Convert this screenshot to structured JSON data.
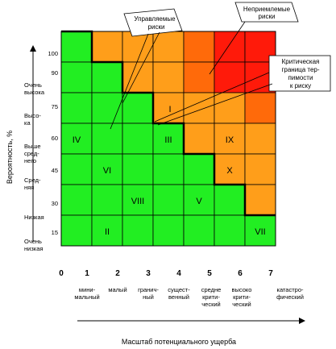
{
  "axes": {
    "y_title": "Вероятность, %",
    "x_title": "Масштаб потенциального ущерба",
    "y_ticks": [
      "100",
      "90",
      "75",
      "60",
      "45",
      "30",
      "15"
    ],
    "y_levels": [
      [
        "Очень",
        "высока"
      ],
      [
        "Высо-",
        "ка"
      ],
      [
        "Выше",
        "сред-",
        "него"
      ],
      [
        "Сред-",
        "няя"
      ],
      [
        "Низкая"
      ],
      [
        "Очень",
        "низкая"
      ]
    ],
    "x_numbers": [
      "0",
      "1",
      "2",
      "3",
      "4",
      "5",
      "6",
      "7"
    ],
    "x_categories": [
      [
        "мини-",
        "мальный"
      ],
      [
        "малый"
      ],
      [
        "гранич-",
        "ный"
      ],
      [
        "сущест-",
        "венный"
      ],
      [
        "средне",
        "крити-",
        "ческий"
      ],
      [
        "высоко",
        "крити-",
        "ческий"
      ],
      [
        "катастро-",
        "фический"
      ]
    ]
  },
  "zones": [
    "I",
    "II",
    "III",
    "IV",
    "V",
    "VI",
    "VII",
    "VIII",
    "IX",
    "X"
  ],
  "callouts": {
    "managed": [
      "Управляемые",
      "риски"
    ],
    "unacceptable": [
      "Неприемлемые",
      "риски"
    ],
    "boundary": [
      "Критическая",
      "граница тер-",
      "пимости",
      "к риску"
    ]
  },
  "colors": {
    "acceptable": "#22ee22",
    "moderate": "#ff9e1a",
    "high": "#ff6a0a",
    "critical": "#ff1a0a",
    "boundary": "#000000"
  }
}
